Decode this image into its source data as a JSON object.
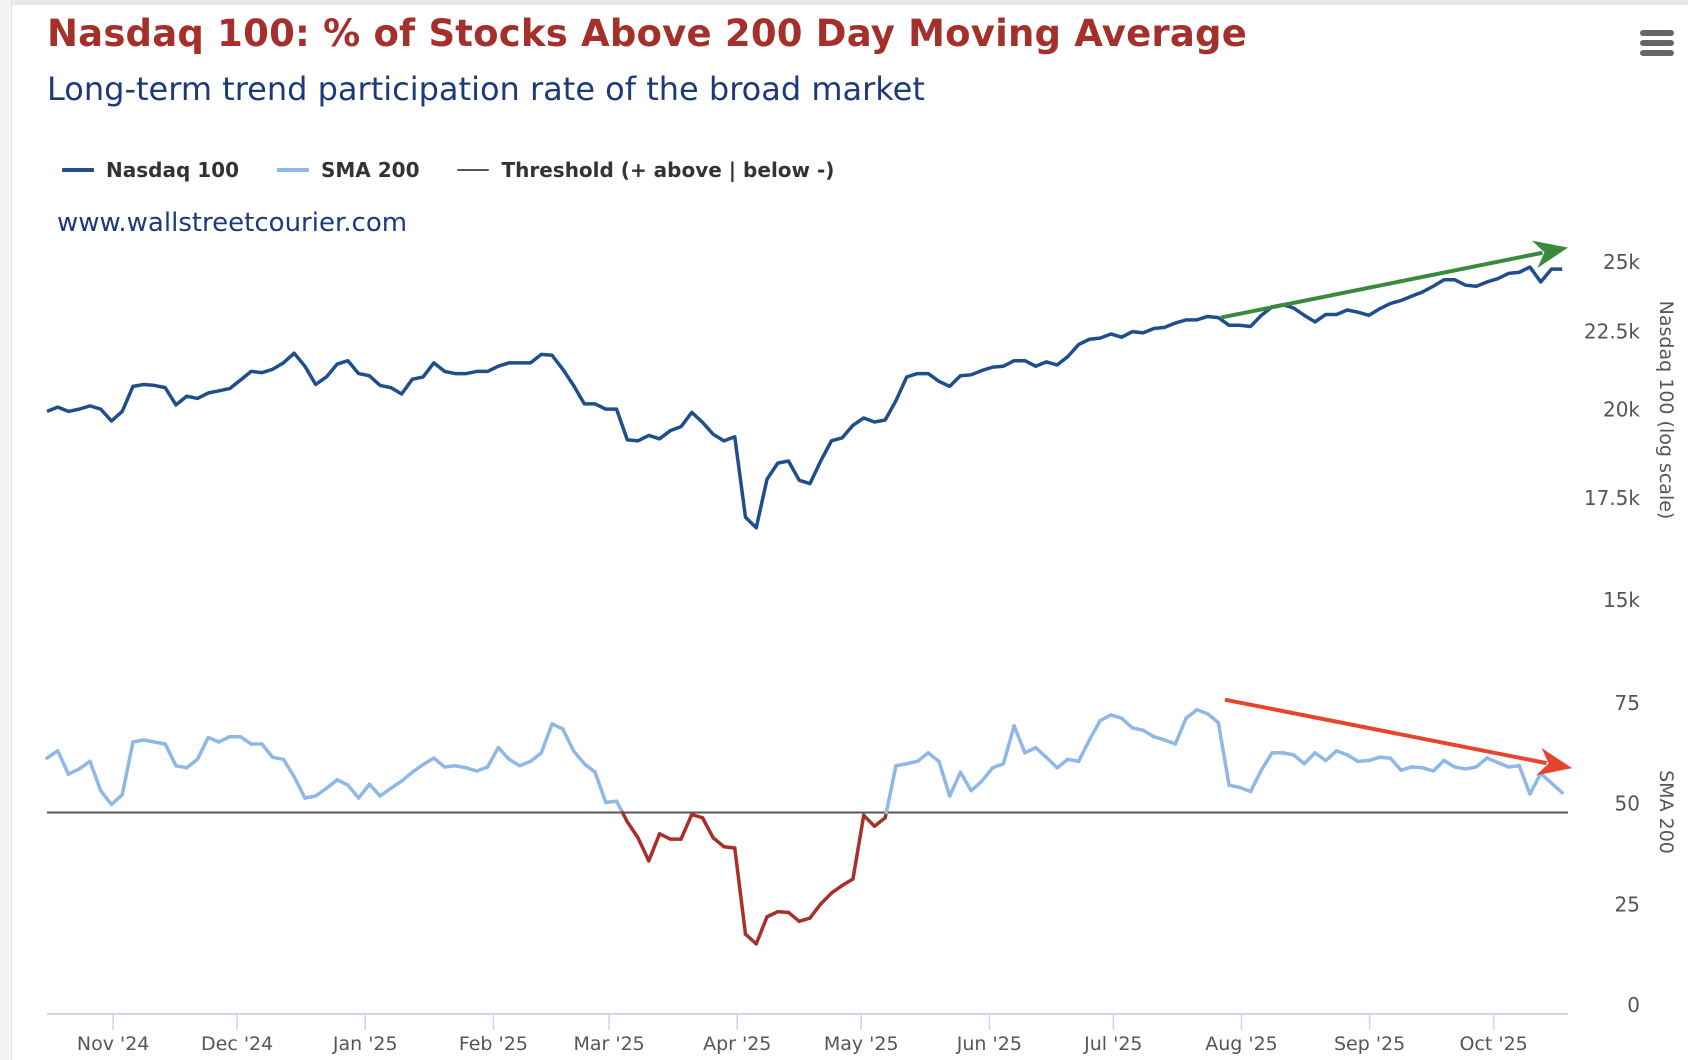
{
  "header": {
    "title": "Nasdaq 100: % of Stocks Above 200 Day Moving Average",
    "subtitle": "Long-term trend participation rate of the broad market",
    "watermark": "www.wallstreetcourier.com",
    "menu_icon": "hamburger-menu-icon"
  },
  "legend": [
    {
      "label": "Nasdaq 100",
      "color": "#1f4e8c"
    },
    {
      "label": "SMA 200",
      "color": "#8db8e8"
    },
    {
      "label": "Threshold (+ above | below -)",
      "color": "#555555"
    }
  ],
  "colors": {
    "title": "#a5302b",
    "subtitle": "#1c3a7a",
    "nasdaq_line": "#1f4e8c",
    "sma_line": "#8db8e8",
    "sma_below_threshold": "#a8302a",
    "threshold_line": "#555555",
    "up_trend_arrow": "#3a8a3e",
    "down_trend_arrow": "#e8432f",
    "x_axis": "#ccd6eb"
  },
  "chart_data": {
    "type": "line",
    "title": "Nasdaq 100: % of Stocks Above 200 Day Moving Average",
    "subtitle": "Long-term trend participation rate of the broad market",
    "x": {
      "type": "date",
      "start": "2024-10-16",
      "step_days": 2.6,
      "range": [
        "2024-10-16",
        "2025-10-19"
      ],
      "ticks": [
        {
          "label": "Nov '24",
          "date": "2024-11-01"
        },
        {
          "label": "Dec '24",
          "date": "2024-12-01"
        },
        {
          "label": "Jan '25",
          "date": "2025-01-01"
        },
        {
          "label": "Feb '25",
          "date": "2025-02-01"
        },
        {
          "label": "Mar '25",
          "date": "2025-03-01"
        },
        {
          "label": "Apr '25",
          "date": "2025-04-01"
        },
        {
          "label": "May '25",
          "date": "2025-05-01"
        },
        {
          "label": "Jun '25",
          "date": "2025-06-01"
        },
        {
          "label": "Jul '25",
          "date": "2025-07-01"
        },
        {
          "label": "Aug '25",
          "date": "2025-08-01"
        },
        {
          "label": "Sep '25",
          "date": "2025-09-01"
        },
        {
          "label": "Oct '25",
          "date": "2025-10-01"
        }
      ]
    },
    "panels": [
      {
        "name": "nasdaq",
        "ylabel": "Nasdaq 100 (log scale)",
        "scale": "log",
        "ticks": [
          {
            "label": "25k",
            "value": 25000
          },
          {
            "label": "22.5k",
            "value": 22500
          },
          {
            "label": "20k",
            "value": 20000
          },
          {
            "label": "17.5k",
            "value": 17500
          },
          {
            "label": "15k",
            "value": 15000
          }
        ]
      },
      {
        "name": "sma",
        "ylabel": "SMA 200",
        "scale": "linear",
        "ylim": [
          0,
          75
        ],
        "threshold": 50,
        "ticks": [
          {
            "label": "75",
            "value": 75
          },
          {
            "label": "50",
            "value": 50
          },
          {
            "label": "25",
            "value": 25
          },
          {
            "label": "0",
            "value": 0
          }
        ]
      }
    ],
    "series": [
      {
        "name": "Nasdaq 100",
        "panel": "nasdaq",
        "values": [
          20220,
          20350,
          20220,
          20290,
          20390,
          20290,
          19930,
          20220,
          21000,
          21060,
          21030,
          20960,
          20420,
          20690,
          20620,
          20790,
          20860,
          20930,
          21200,
          21480,
          21440,
          21550,
          21760,
          22080,
          21650,
          21060,
          21300,
          21720,
          21830,
          21410,
          21340,
          21030,
          20960,
          20760,
          21230,
          21300,
          21760,
          21480,
          21410,
          21410,
          21480,
          21480,
          21650,
          21760,
          21760,
          21760,
          22040,
          22010,
          21550,
          21030,
          20450,
          20450,
          20290,
          20290,
          19370,
          19340,
          19500,
          19400,
          19640,
          19760,
          20190,
          19890,
          19530,
          19340,
          19460,
          17230,
          16960,
          18250,
          18700,
          18760,
          18220,
          18130,
          18760,
          19340,
          19430,
          19800,
          20020,
          19900,
          19960,
          20550,
          21300,
          21410,
          21410,
          21160,
          21000,
          21340,
          21370,
          21510,
          21620,
          21650,
          21830,
          21830,
          21650,
          21790,
          21690,
          21970,
          22370,
          22550,
          22590,
          22730,
          22620,
          22810,
          22770,
          22920,
          22960,
          23110,
          23220,
          23220,
          23340,
          23300,
          23030,
          23030,
          22990,
          23380,
          23680,
          23760,
          23640,
          23380,
          23150,
          23410,
          23410,
          23570,
          23490,
          23380,
          23610,
          23800,
          23910,
          24070,
          24220,
          24430,
          24670,
          24670,
          24470,
          24430,
          24590,
          24710,
          24910,
          24950,
          25150,
          24590,
          25070,
          25070
        ]
      },
      {
        "name": "SMA 200",
        "panel": "sma",
        "values": [
          63.5,
          65.3,
          59.5,
          60.8,
          62.7,
          55.4,
          52.0,
          54.4,
          67.5,
          68.0,
          67.5,
          67.0,
          61.6,
          61.1,
          63.2,
          68.6,
          67.5,
          68.8,
          68.8,
          67.0,
          67.0,
          63.7,
          63.2,
          58.9,
          53.6,
          54.1,
          56.0,
          58.1,
          56.8,
          53.6,
          57.0,
          54.1,
          56.0,
          57.8,
          60.0,
          61.9,
          63.5,
          61.3,
          61.6,
          61.1,
          60.3,
          61.3,
          66.1,
          63.2,
          61.6,
          62.7,
          64.8,
          72.0,
          70.7,
          65.3,
          62.1,
          60.0,
          52.5,
          52.8,
          47.7,
          43.7,
          38.0,
          44.7,
          43.4,
          43.4,
          49.5,
          48.7,
          43.7,
          41.5,
          41.2,
          19.8,
          17.4,
          24.1,
          25.4,
          25.2,
          23.0,
          23.8,
          27.3,
          30.0,
          31.9,
          33.5,
          49.3,
          46.6,
          48.7,
          61.6,
          62.1,
          62.7,
          64.8,
          62.7,
          54.1,
          60.0,
          55.4,
          57.8,
          61.1,
          62.1,
          71.5,
          64.8,
          66.1,
          63.7,
          61.1,
          63.2,
          62.7,
          68.0,
          72.8,
          74.2,
          73.4,
          71.0,
          70.4,
          68.8,
          68.0,
          67.0,
          73.4,
          75.5,
          74.5,
          72.3,
          56.8,
          56.2,
          55.2,
          60.5,
          64.8,
          64.8,
          64.3,
          62.1,
          64.8,
          62.9,
          65.3,
          64.3,
          62.7,
          62.9,
          63.7,
          63.5,
          60.5,
          61.3,
          61.1,
          60.3,
          62.9,
          61.3,
          60.8,
          61.3,
          63.5,
          62.4,
          61.3,
          61.6,
          54.6,
          59.7,
          57.3,
          54.9
        ]
      },
      {
        "name": "Threshold (+ above | below -)",
        "panel": "sma",
        "constant": 50
      }
    ],
    "annotations": [
      {
        "type": "arrow",
        "panel": "nasdaq",
        "direction": "up",
        "from": {
          "date": "2025-07-27",
          "value": 23300
        },
        "to": {
          "date": "2025-10-19",
          "value": 25900
        }
      },
      {
        "type": "arrow",
        "panel": "sma",
        "direction": "down",
        "from": {
          "date": "2025-07-28",
          "value": 78
        },
        "to": {
          "date": "2025-10-20",
          "value": 61
        }
      }
    ],
    "grid": false,
    "legend_position": "top-left"
  }
}
